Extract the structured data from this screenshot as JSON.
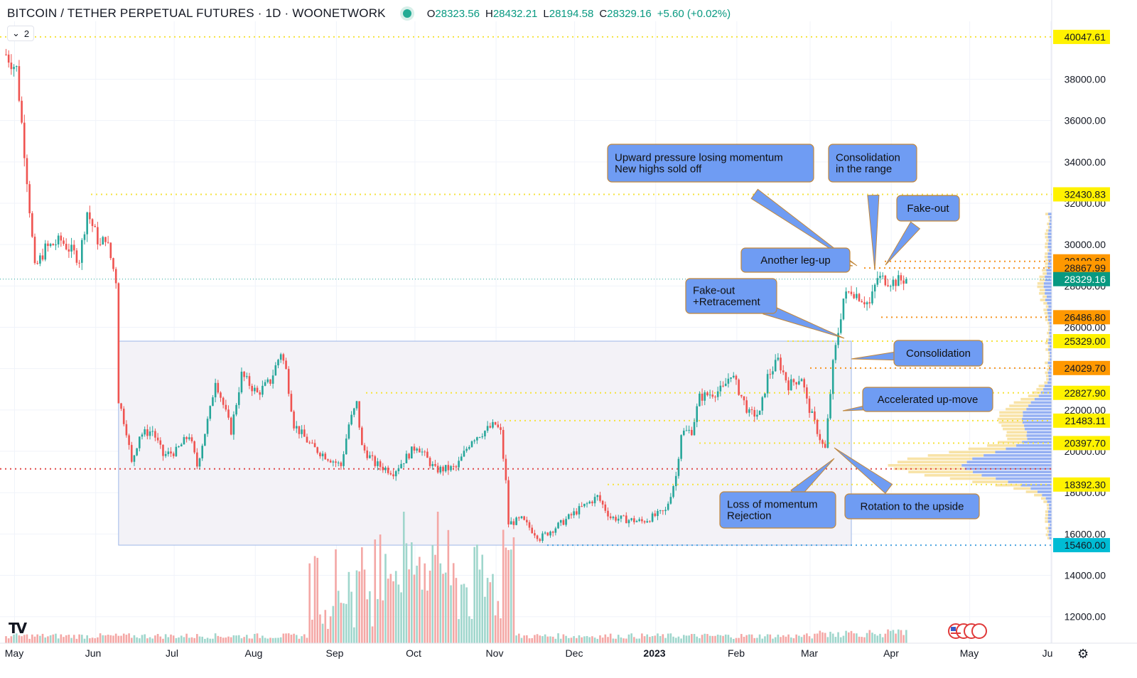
{
  "header": {
    "title": "BITCOIN / TETHER PERPETUAL FUTURES · 1D · WOONETWORK",
    "o_label": "O",
    "o_value": "28323.56",
    "h_label": "H",
    "h_value": "28432.21",
    "l_label": "L",
    "l_value": "28194.58",
    "c_label": "C",
    "c_value": "28329.16",
    "change": "+5.60 (+0.02%)",
    "collapse_label": "2",
    "collapse_icon": "chevron-down-icon"
  },
  "colors": {
    "up": "#26a69a",
    "down": "#ef5350",
    "volume_up": "#9fd6cc",
    "volume_down": "#f4a7a5",
    "callout_fill": "#6f9cf3",
    "callout_border": "#c2873a",
    "range_box": "#f3f2f7",
    "yellow_label": "#fff200",
    "orange_label": "#ff9800",
    "green_label": "#089981",
    "cyan_label": "#00bcd4"
  },
  "chart_data": {
    "type": "candlestick",
    "title": "BITCOIN / TETHER PERPETUAL FUTURES · 1D · WOONETWORK",
    "y_axis": {
      "ticks": [
        "12000.00",
        "14000.00",
        "16000.00",
        "18000.00",
        "20000.00",
        "22000.00",
        "24000.00",
        "26000.00",
        "28000.00",
        "30000.00",
        "32000.00",
        "34000.00",
        "36000.00",
        "38000.00"
      ],
      "range": [
        11000,
        41500
      ]
    },
    "x_axis": {
      "ticks": [
        "May",
        "Jun",
        "Jul",
        "Aug",
        "Sep",
        "Oct",
        "Nov",
        "Dec",
        "2023",
        "Feb",
        "Mar",
        "Apr",
        "May",
        "Ju"
      ],
      "range": [
        "2022-05-01",
        "2023-06-01"
      ]
    },
    "last_price": "28329.16",
    "price_levels": [
      {
        "value": "40047.61",
        "style": "yellow"
      },
      {
        "value": "32430.83",
        "style": "yellow"
      },
      {
        "value": "29190.60",
        "style": "orange"
      },
      {
        "value": "28867.99",
        "style": "orange"
      },
      {
        "value": "26486.80",
        "style": "orange"
      },
      {
        "value": "25329.00",
        "style": "yellow"
      },
      {
        "value": "24029.70",
        "style": "orange"
      },
      {
        "value": "22827.90",
        "style": "yellow"
      },
      {
        "value": "21483.11",
        "style": "yellow"
      },
      {
        "value": "20397.70",
        "style": "yellow"
      },
      {
        "value": "18392.30",
        "style": "yellow"
      },
      {
        "value": "15460.00",
        "style": "cyan"
      },
      {
        "value": "19150.00",
        "style": "red"
      }
    ],
    "range_box": {
      "from": "2022-06-13",
      "to": "2023-03-20",
      "low": 15460,
      "high": 25329
    },
    "annotations": [
      {
        "text": [
          "Upward pressure losing momentum",
          "New highs sold off"
        ],
        "date": "2023-03-22",
        "price": 28867.99
      },
      {
        "text": [
          "Consolidation",
          "in the range"
        ],
        "date": "2023-03-29",
        "price": 28400
      },
      {
        "text": [
          "Fake-out"
        ],
        "date": "2023-03-29",
        "price": 28900
      },
      {
        "text": [
          "Another leg-up"
        ],
        "date": "2023-03-21",
        "price": 28000
      },
      {
        "text": [
          "Fake-out",
          "+Retracement"
        ],
        "date": "2023-03-16",
        "price": 25300
      },
      {
        "text": [
          "Consolidation"
        ],
        "date": "2023-03-18",
        "price": 24600
      },
      {
        "text": [
          "Accelerated up-move"
        ],
        "date": "2023-03-14",
        "price": 21900
      },
      {
        "text": [
          "Loss of momentum",
          "Rejection"
        ],
        "date": "2023-03-10",
        "price": 19650
      },
      {
        "text": [
          "Rotation to the upside"
        ],
        "date": "2023-03-12",
        "price": 20000
      }
    ],
    "series_anchors": [
      [
        "2022-05-01",
        39200
      ],
      [
        "2022-05-05",
        38500
      ],
      [
        "2022-05-09",
        33200
      ],
      [
        "2022-05-12",
        28800
      ],
      [
        "2022-05-16",
        29800
      ],
      [
        "2022-05-22",
        30200
      ],
      [
        "2022-05-29",
        29300
      ],
      [
        "2022-06-01",
        31600
      ],
      [
        "2022-06-06",
        29900
      ],
      [
        "2022-06-08",
        30400
      ],
      [
        "2022-06-12",
        28300
      ],
      [
        "2022-06-13",
        22500
      ],
      [
        "2022-06-16",
        21000
      ],
      [
        "2022-06-18",
        19400
      ],
      [
        "2022-06-21",
        20800
      ],
      [
        "2022-06-26",
        21000
      ],
      [
        "2022-06-30",
        19800
      ],
      [
        "2022-07-05",
        20000
      ],
      [
        "2022-07-10",
        20800
      ],
      [
        "2022-07-13",
        19300
      ],
      [
        "2022-07-18",
        22000
      ],
      [
        "2022-07-20",
        23500
      ],
      [
        "2022-07-26",
        21000
      ],
      [
        "2022-07-30",
        23700
      ],
      [
        "2022-08-05",
        22800
      ],
      [
        "2022-08-10",
        23400
      ],
      [
        "2022-08-14",
        24800
      ],
      [
        "2022-08-16",
        23900
      ],
      [
        "2022-08-19",
        21300
      ],
      [
        "2022-08-26",
        20200
      ],
      [
        "2022-09-06",
        19300
      ],
      [
        "2022-09-09",
        21300
      ],
      [
        "2022-09-12",
        22300
      ],
      [
        "2022-09-14",
        20200
      ],
      [
        "2022-09-19",
        19400
      ],
      [
        "2022-09-26",
        19000
      ],
      [
        "2022-10-05",
        20300
      ],
      [
        "2022-10-12",
        19100
      ],
      [
        "2022-10-20",
        19200
      ],
      [
        "2022-10-26",
        20600
      ],
      [
        "2022-11-04",
        21300
      ],
      [
        "2022-11-06",
        20900
      ],
      [
        "2022-11-08",
        18500
      ],
      [
        "2022-11-09",
        16500
      ],
      [
        "2022-11-14",
        16700
      ],
      [
        "2022-11-21",
        15800
      ],
      [
        "2022-11-29",
        16500
      ],
      [
        "2022-12-05",
        17100
      ],
      [
        "2022-12-13",
        17800
      ],
      [
        "2022-12-18",
        16800
      ],
      [
        "2022-12-30",
        16600
      ],
      [
        "2023-01-08",
        17100
      ],
      [
        "2023-01-12",
        18800
      ],
      [
        "2023-01-14",
        20900
      ],
      [
        "2023-01-18",
        21000
      ],
      [
        "2023-01-21",
        22600
      ],
      [
        "2023-01-30",
        23000
      ],
      [
        "2023-02-02",
        23800
      ],
      [
        "2023-02-09",
        21800
      ],
      [
        "2023-02-13",
        21800
      ],
      [
        "2023-02-16",
        23600
      ],
      [
        "2023-02-20",
        24400
      ],
      [
        "2023-02-24",
        23200
      ],
      [
        "2023-03-01",
        23600
      ],
      [
        "2023-03-03",
        22400
      ],
      [
        "2023-03-09",
        20300
      ],
      [
        "2023-03-10",
        20100
      ],
      [
        "2023-03-13",
        24200
      ],
      [
        "2023-03-17",
        27400
      ],
      [
        "2023-03-20",
        27800
      ],
      [
        "2023-03-27",
        27100
      ],
      [
        "2023-03-30",
        28400
      ],
      [
        "2023-04-05",
        28200
      ],
      [
        "2023-04-10",
        28329
      ]
    ]
  }
}
